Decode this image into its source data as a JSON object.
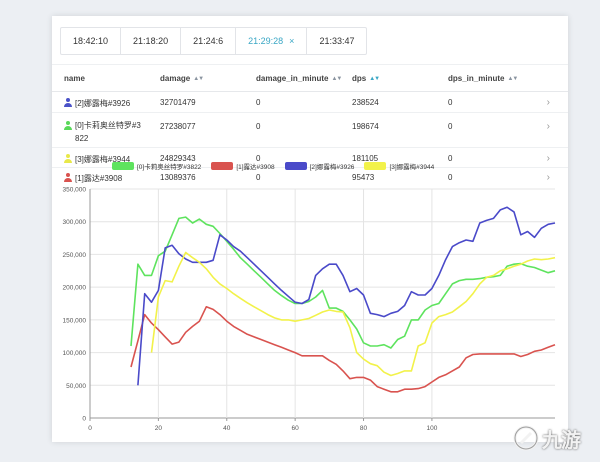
{
  "tabs": [
    {
      "label": "18:42:10",
      "active": false
    },
    {
      "label": "21:18:20",
      "active": false
    },
    {
      "label": "21:24:6",
      "active": false
    },
    {
      "label": "21:29:28",
      "active": true
    },
    {
      "label": "21:33:47",
      "active": false
    }
  ],
  "close_symbol": "×",
  "table": {
    "headers": {
      "name": "name",
      "damage": "damage",
      "damage_in_minute": "damage_in_minute",
      "dps": "dps",
      "dps_in_minute": "dps_in_minute"
    },
    "rows": [
      {
        "name": "[2]娜露梅#3926",
        "damage": "32701479",
        "damage_in_minute": "0",
        "dps": "238524",
        "dps_in_minute": "0",
        "color": "#4a52c8"
      },
      {
        "name": "[0]卡莉奥丝特罗#3822",
        "damage": "27238077",
        "damage_in_minute": "0",
        "dps": "198674",
        "dps_in_minute": "0",
        "color": "#5ad85a"
      },
      {
        "name": "[3]娜露梅#3944",
        "damage": "24829343",
        "damage_in_minute": "0",
        "dps": "181105",
        "dps_in_minute": "0",
        "color": "#e8e84a"
      },
      {
        "name": "[1]露达#3908",
        "damage": "13089376",
        "damage_in_minute": "0",
        "dps": "95473",
        "dps_in_minute": "0",
        "color": "#d9534f"
      }
    ]
  },
  "chart_data": {
    "type": "line",
    "x": [
      12,
      14,
      16,
      18,
      20,
      22,
      24,
      26,
      28,
      30,
      32,
      34,
      36,
      38,
      40,
      42,
      44,
      46,
      48,
      50,
      52,
      54,
      56,
      58,
      60,
      62,
      64,
      66,
      68,
      70,
      72,
      74,
      76,
      78,
      80,
      82,
      84,
      86,
      88,
      90,
      92,
      94,
      96,
      98,
      100,
      102,
      104,
      106,
      108,
      110,
      112,
      114,
      116,
      118,
      120,
      122,
      124,
      126,
      128,
      130,
      132,
      134,
      136
    ],
    "series": [
      {
        "name": "[0]卡莉奥丝特罗#3822",
        "color": "#5ee35e",
        "values": [
          110000,
          235000,
          218000,
          218000,
          248000,
          255000,
          280000,
          305000,
          307000,
          298000,
          304000,
          296000,
          293000,
          282000,
          270000,
          258000,
          245000,
          235000,
          225000,
          215000,
          205000,
          195000,
          187000,
          180000,
          175000,
          175000,
          178000,
          185000,
          195000,
          168000,
          168000,
          163000,
          150000,
          136000,
          115000,
          110000,
          110000,
          112000,
          107000,
          120000,
          125000,
          150000,
          150000,
          165000,
          172000,
          175000,
          190000,
          205000,
          210000,
          212000,
          212000,
          213000,
          215000,
          216000,
          218000,
          232000,
          235000,
          236000,
          232000,
          230000,
          226000,
          222000,
          225000
        ]
      },
      {
        "name": "[1]露达#3908",
        "color": "#d9534f",
        "values": [
          78000,
          118000,
          158000,
          145000,
          135000,
          124000,
          113000,
          116000,
          131000,
          140000,
          148000,
          170000,
          166000,
          158000,
          148000,
          140000,
          134000,
          128000,
          124000,
          120000,
          116000,
          112000,
          108000,
          104000,
          100000,
          95000,
          95000,
          95000,
          95000,
          88000,
          82000,
          72000,
          60000,
          62000,
          62000,
          58000,
          48000,
          44000,
          40000,
          40000,
          44000,
          44000,
          45000,
          48000,
          55000,
          62000,
          66000,
          72000,
          78000,
          92000,
          97000,
          98000,
          98000,
          98000,
          98000,
          98000,
          98000,
          94000,
          97000,
          102000,
          104000,
          108000,
          112000
        ]
      },
      {
        "name": "[2]娜露梅#3926",
        "color": "#4a4ac9",
        "values": [
          null,
          50000,
          190000,
          177000,
          195000,
          260000,
          264000,
          251000,
          243000,
          238000,
          238000,
          238000,
          241000,
          280000,
          272000,
          262000,
          255000,
          245000,
          235000,
          225000,
          215000,
          205000,
          195000,
          186000,
          177000,
          175000,
          181000,
          218000,
          228000,
          235000,
          235000,
          218000,
          193000,
          198000,
          188000,
          160000,
          158000,
          155000,
          160000,
          163000,
          172000,
          193000,
          188000,
          188000,
          198000,
          218000,
          242000,
          262000,
          268000,
          272000,
          270000,
          298000,
          302000,
          305000,
          318000,
          322000,
          315000,
          280000,
          285000,
          276000,
          290000,
          296000,
          298000
        ]
      },
      {
        "name": "[3]娜露梅#3944",
        "color": "#f2f24a",
        "values": [
          null,
          null,
          null,
          100000,
          185000,
          210000,
          208000,
          232000,
          253000,
          245000,
          238000,
          228000,
          215000,
          205000,
          198000,
          190000,
          183000,
          176000,
          170000,
          164000,
          158000,
          153000,
          150000,
          150000,
          148000,
          150000,
          152000,
          157000,
          162000,
          165000,
          163000,
          162000,
          138000,
          100000,
          90000,
          83000,
          80000,
          70000,
          65000,
          68000,
          72000,
          72000,
          110000,
          115000,
          145000,
          155000,
          158000,
          162000,
          170000,
          178000,
          190000,
          205000,
          215000,
          218000,
          225000,
          228000,
          232000,
          235000,
          240000,
          243000,
          242000,
          243000,
          245000
        ]
      }
    ],
    "title": "",
    "xlabel": "",
    "ylabel": "",
    "xlim": [
      0,
      136
    ],
    "ylim": [
      0,
      350000
    ],
    "xticks": [
      "0",
      "20",
      "40",
      "60",
      "80",
      "100"
    ],
    "yticks": [
      "0",
      "50,000",
      "100,000",
      "150,000",
      "200,000",
      "250,000",
      "300,000",
      "350,000"
    ],
    "grid": true,
    "legend": "top-center"
  },
  "watermark": {
    "text": "九游",
    "icon": "game-controller-icon"
  }
}
